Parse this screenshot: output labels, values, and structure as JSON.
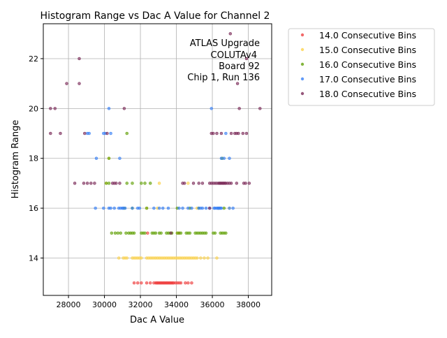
{
  "chart_data": {
    "type": "scatter",
    "title": "Histogram Range vs Dac A Value for Channel 2",
    "xlabel": "Dac A Value",
    "ylabel": "Histogram Range",
    "xlim": [
      26600,
      39300
    ],
    "ylim": [
      12.5,
      23.4
    ],
    "xticks": [
      28000,
      30000,
      32000,
      34000,
      36000,
      38000
    ],
    "yticks": [
      14,
      16,
      18,
      20,
      22
    ],
    "grid": true,
    "legend_placement": "outside-upper-right",
    "annotation": [
      "ATLAS Upgrade",
      "COLUTAv4",
      "Board 92",
      "Chip 1, Run 136"
    ],
    "series": [
      {
        "name": "14.0 Consecutive Bins",
        "color": "#ef4444",
        "points": [
          [
            31650,
            13
          ],
          [
            31850,
            13
          ],
          [
            32050,
            13
          ],
          [
            32350,
            13
          ],
          [
            32550,
            13
          ],
          [
            32750,
            13
          ],
          [
            32850,
            13
          ],
          [
            32900,
            13
          ],
          [
            32950,
            13
          ],
          [
            33000,
            13
          ],
          [
            33050,
            13
          ],
          [
            33100,
            13
          ],
          [
            33150,
            13
          ],
          [
            33200,
            13
          ],
          [
            33250,
            13
          ],
          [
            33300,
            13
          ],
          [
            33350,
            13
          ],
          [
            33400,
            13
          ],
          [
            33450,
            13
          ],
          [
            33500,
            13
          ],
          [
            33550,
            13
          ],
          [
            33600,
            13
          ],
          [
            33650,
            13
          ],
          [
            33700,
            13
          ],
          [
            33750,
            13
          ],
          [
            33800,
            13
          ],
          [
            33850,
            13
          ],
          [
            33950,
            13
          ],
          [
            34050,
            13
          ],
          [
            34150,
            13
          ],
          [
            34250,
            13
          ],
          [
            34500,
            13
          ],
          [
            34650,
            13
          ],
          [
            34850,
            13
          ],
          [
            32400,
            15
          ],
          [
            34150,
            15
          ]
        ]
      },
      {
        "name": "15.0 Consecutive Bins",
        "color": "#fcd34d",
        "points": [
          [
            30800,
            14
          ],
          [
            31050,
            14
          ],
          [
            31150,
            14
          ],
          [
            31250,
            14
          ],
          [
            31550,
            14
          ],
          [
            31650,
            14
          ],
          [
            31750,
            14
          ],
          [
            31850,
            14
          ],
          [
            31950,
            14
          ],
          [
            32050,
            14
          ],
          [
            32350,
            14
          ],
          [
            32450,
            14
          ],
          [
            32550,
            14
          ],
          [
            32650,
            14
          ],
          [
            32750,
            14
          ],
          [
            32850,
            14
          ],
          [
            32950,
            14
          ],
          [
            33050,
            14
          ],
          [
            33150,
            14
          ],
          [
            33250,
            14
          ],
          [
            33350,
            14
          ],
          [
            33450,
            14
          ],
          [
            33550,
            14
          ],
          [
            33650,
            14
          ],
          [
            33750,
            14
          ],
          [
            33850,
            14
          ],
          [
            33950,
            14
          ],
          [
            34050,
            14
          ],
          [
            34150,
            14
          ],
          [
            34250,
            14
          ],
          [
            34350,
            14
          ],
          [
            34450,
            14
          ],
          [
            34550,
            14
          ],
          [
            34650,
            14
          ],
          [
            34750,
            14
          ],
          [
            34850,
            14
          ],
          [
            34950,
            14
          ],
          [
            35050,
            14
          ],
          [
            35150,
            14
          ],
          [
            35350,
            14
          ],
          [
            35550,
            14
          ],
          [
            35750,
            14
          ],
          [
            36250,
            14
          ],
          [
            32350,
            16
          ],
          [
            32950,
            16
          ],
          [
            33050,
            17
          ],
          [
            34650,
            17
          ],
          [
            34050,
            15
          ],
          [
            30250,
            18
          ],
          [
            30100,
            17
          ],
          [
            36950,
            16
          ],
          [
            35150,
            16
          ]
        ]
      },
      {
        "name": "16.0 Consecutive Bins",
        "color": "#65a30d",
        "points": [
          [
            30400,
            15
          ],
          [
            30600,
            15
          ],
          [
            30750,
            15
          ],
          [
            30900,
            15
          ],
          [
            31200,
            15
          ],
          [
            31350,
            15
          ],
          [
            31450,
            15
          ],
          [
            31550,
            15
          ],
          [
            31650,
            15
          ],
          [
            32050,
            15
          ],
          [
            32150,
            15
          ],
          [
            32250,
            15
          ],
          [
            32650,
            15
          ],
          [
            32750,
            15
          ],
          [
            32850,
            15
          ],
          [
            33050,
            15
          ],
          [
            33150,
            15
          ],
          [
            33450,
            15
          ],
          [
            33550,
            15
          ],
          [
            33650,
            15
          ],
          [
            33750,
            15
          ],
          [
            34050,
            15
          ],
          [
            34150,
            15
          ],
          [
            34250,
            15
          ],
          [
            34550,
            15
          ],
          [
            34650,
            15
          ],
          [
            34750,
            15
          ],
          [
            35050,
            15
          ],
          [
            35150,
            15
          ],
          [
            35250,
            15
          ],
          [
            35350,
            15
          ],
          [
            35450,
            15
          ],
          [
            35550,
            15
          ],
          [
            35650,
            15
          ],
          [
            36050,
            15
          ],
          [
            36150,
            15
          ],
          [
            36450,
            15
          ],
          [
            36550,
            15
          ],
          [
            36650,
            15
          ],
          [
            36750,
            15
          ],
          [
            30100,
            17
          ],
          [
            30250,
            17
          ],
          [
            31250,
            17
          ],
          [
            31550,
            17
          ],
          [
            32050,
            17
          ],
          [
            32250,
            17
          ],
          [
            32550,
            17
          ],
          [
            31250,
            19
          ],
          [
            30250,
            18
          ],
          [
            31100,
            16
          ],
          [
            31550,
            16
          ],
          [
            32350,
            16
          ],
          [
            34050,
            16
          ],
          [
            34750,
            16
          ],
          [
            35250,
            16
          ],
          [
            36350,
            16
          ],
          [
            36650,
            16
          ],
          [
            36550,
            18
          ]
        ]
      },
      {
        "name": "17.0 Consecutive Bins",
        "color": "#3b82f6",
        "points": [
          [
            29500,
            16
          ],
          [
            29950,
            16
          ],
          [
            30250,
            16
          ],
          [
            30350,
            16
          ],
          [
            30550,
            16
          ],
          [
            30800,
            16
          ],
          [
            30900,
            16
          ],
          [
            31000,
            16
          ],
          [
            31050,
            16
          ],
          [
            31150,
            16
          ],
          [
            31550,
            16
          ],
          [
            31850,
            16
          ],
          [
            31950,
            16
          ],
          [
            32750,
            16
          ],
          [
            33050,
            16
          ],
          [
            33250,
            16
          ],
          [
            33550,
            16
          ],
          [
            34150,
            16
          ],
          [
            34350,
            16
          ],
          [
            34650,
            16
          ],
          [
            34850,
            16
          ],
          [
            35250,
            16
          ],
          [
            35350,
            16
          ],
          [
            35450,
            16
          ],
          [
            35650,
            16
          ],
          [
            35850,
            16
          ],
          [
            36100,
            16
          ],
          [
            36150,
            16
          ],
          [
            36250,
            16
          ],
          [
            36300,
            16
          ],
          [
            36350,
            16
          ],
          [
            36400,
            16
          ],
          [
            36450,
            16
          ],
          [
            36500,
            16
          ],
          [
            36950,
            16
          ],
          [
            37150,
            16
          ],
          [
            29550,
            18
          ],
          [
            30850,
            18
          ],
          [
            36500,
            18
          ],
          [
            36650,
            18
          ],
          [
            36950,
            18
          ],
          [
            29050,
            19
          ],
          [
            29150,
            19
          ],
          [
            29950,
            19
          ],
          [
            30050,
            19
          ],
          [
            30350,
            19
          ],
          [
            36750,
            19
          ],
          [
            30250,
            20
          ],
          [
            35950,
            20
          ]
        ]
      },
      {
        "name": "18.0 Consecutive Bins",
        "color": "#7c2d5a",
        "points": [
          [
            27000,
            20
          ],
          [
            27250,
            20
          ],
          [
            31100,
            20
          ],
          [
            37500,
            20
          ],
          [
            38650,
            20
          ],
          [
            27000,
            19
          ],
          [
            27550,
            19
          ],
          [
            28900,
            19
          ],
          [
            30150,
            19
          ],
          [
            35950,
            19
          ],
          [
            36050,
            19
          ],
          [
            36250,
            19
          ],
          [
            36500,
            19
          ],
          [
            37050,
            19
          ],
          [
            37250,
            19
          ],
          [
            37350,
            19
          ],
          [
            37450,
            19
          ],
          [
            37700,
            19
          ],
          [
            37900,
            19
          ],
          [
            28350,
            17
          ],
          [
            28850,
            17
          ],
          [
            29050,
            17
          ],
          [
            29250,
            17
          ],
          [
            29450,
            17
          ],
          [
            30450,
            17
          ],
          [
            30550,
            17
          ],
          [
            30650,
            17
          ],
          [
            30850,
            17
          ],
          [
            34350,
            17
          ],
          [
            34450,
            17
          ],
          [
            34950,
            17
          ],
          [
            35250,
            17
          ],
          [
            35450,
            17
          ],
          [
            35850,
            17
          ],
          [
            35950,
            17
          ],
          [
            36050,
            17
          ],
          [
            36150,
            17
          ],
          [
            36250,
            17
          ],
          [
            36350,
            17
          ],
          [
            36400,
            17
          ],
          [
            36450,
            17
          ],
          [
            36500,
            17
          ],
          [
            36550,
            17
          ],
          [
            36600,
            17
          ],
          [
            36650,
            17
          ],
          [
            36700,
            17
          ],
          [
            36750,
            17
          ],
          [
            36850,
            17
          ],
          [
            36950,
            17
          ],
          [
            37050,
            17
          ],
          [
            37350,
            17
          ],
          [
            37750,
            17
          ],
          [
            37850,
            17
          ],
          [
            38050,
            17
          ],
          [
            27900,
            21
          ],
          [
            28600,
            21
          ],
          [
            37400,
            21
          ],
          [
            28600,
            22
          ],
          [
            37900,
            22
          ],
          [
            37000,
            23
          ],
          [
            33700,
            15
          ],
          [
            35850,
            16
          ]
        ]
      }
    ]
  }
}
